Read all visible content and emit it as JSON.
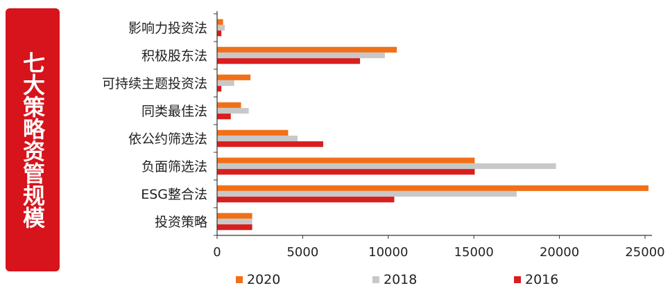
{
  "banner": {
    "text": "七大策略资管规模",
    "color": "#d7131b"
  },
  "chart_data": {
    "type": "bar",
    "orientation": "horizontal",
    "categories": [
      "影响力投资法",
      "积极股东法",
      "可持续主题投资法",
      "同类最佳法",
      "依公约筛选法",
      "负面筛选法",
      "ESG整合法",
      "投资策略"
    ],
    "series": [
      {
        "name": "2020",
        "color": "#f07019",
        "values": [
          350,
          10500,
          1950,
          1400,
          4150,
          15050,
          25200,
          2050
        ]
      },
      {
        "name": "2018",
        "color": "#c8c8c8",
        "values": [
          450,
          9800,
          1000,
          1850,
          4700,
          19800,
          17500,
          2050
        ]
      },
      {
        "name": "2016",
        "color": "#d81e1e",
        "values": [
          250,
          8350,
          250,
          800,
          6200,
          15050,
          10350,
          2050
        ]
      }
    ],
    "xlim": [
      0,
      25000
    ],
    "xticks": [
      "0",
      "5000",
      "10000",
      "15000",
      "20000",
      "25000"
    ],
    "xtick_values": [
      0,
      5000,
      10000,
      15000,
      20000,
      25000
    ],
    "legend_position": "bottom",
    "grid": false
  }
}
